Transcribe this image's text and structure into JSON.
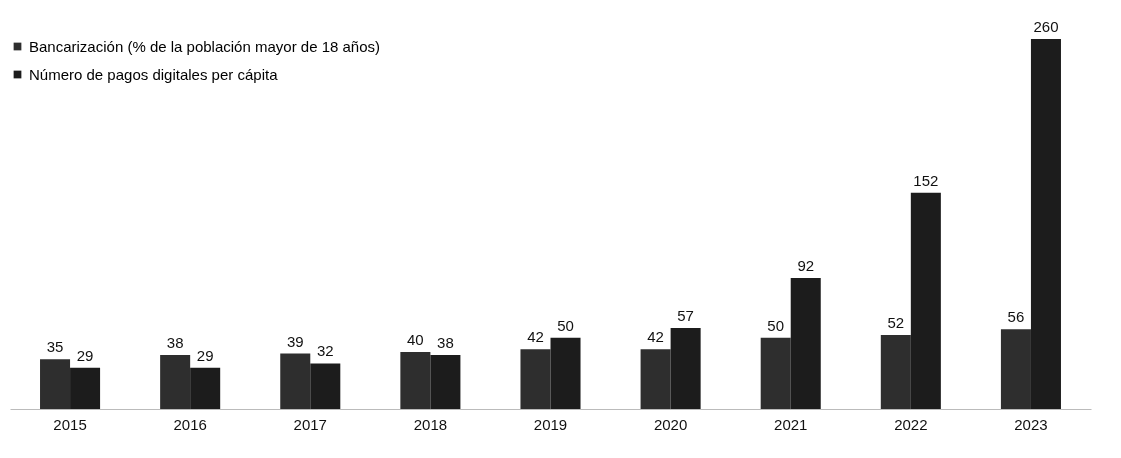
{
  "chart_data": {
    "type": "bar",
    "categories": [
      "2015",
      "2016",
      "2017",
      "2018",
      "2019",
      "2020",
      "2021",
      "2022",
      "2023"
    ],
    "series": [
      {
        "name": "Bancarización (% de la población mayor de 18 años)",
        "color": "#2e2e2e",
        "values": [
          35,
          38,
          39,
          40,
          42,
          42,
          50,
          52,
          56
        ]
      },
      {
        "name": "Número de pagos digitales per cápita",
        "color": "#1c1c1c",
        "values": [
          29,
          29,
          32,
          38,
          50,
          57,
          92,
          152,
          260
        ]
      }
    ],
    "data_labels": true,
    "legend": "top left"
  }
}
